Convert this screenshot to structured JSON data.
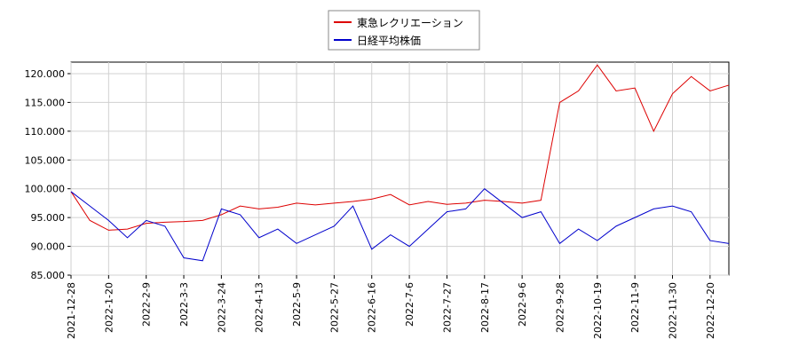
{
  "chart_data": {
    "type": "line",
    "categories": [
      "2021-12-28",
      null,
      "2022-1-20",
      null,
      "2022-2-9",
      null,
      "2022-3-3",
      null,
      "2022-3-24",
      null,
      "2022-4-13",
      null,
      "2022-5-9",
      null,
      "2022-5-27",
      null,
      "2022-6-16",
      null,
      "2022-7-6",
      null,
      "2022-7-27",
      null,
      "2022-8-17",
      null,
      "2022-9-6",
      null,
      "2022-9-28",
      null,
      "2022-10-19",
      null,
      "2022-11-9",
      null,
      "2022-11-30",
      null,
      "2022-12-20",
      null
    ],
    "series": [
      {
        "name": "東急レクリエーション",
        "color": "#dd0000",
        "values": [
          99500,
          94500,
          92800,
          93000,
          94000,
          94200,
          94300,
          94500,
          95500,
          97000,
          96500,
          96800,
          97500,
          97200,
          97500,
          97800,
          98200,
          99000,
          97200,
          97800,
          97300,
          97500,
          98000,
          97800,
          97500,
          98000,
          115000,
          117000,
          121500,
          117000,
          117500,
          110000,
          116500,
          119500,
          117000,
          118000
        ]
      },
      {
        "name": "日経平均株価",
        "color": "#0000cc",
        "values": [
          99500,
          97000,
          94500,
          91500,
          94500,
          93500,
          88000,
          87500,
          96500,
          95500,
          91500,
          93000,
          90500,
          92000,
          93500,
          97000,
          89500,
          92000,
          90000,
          93000,
          96000,
          96500,
          100000,
          97500,
          95000,
          96000,
          90500,
          93000,
          91000,
          93500,
          95000,
          96500,
          97000,
          96000,
          91000,
          90500
        ]
      }
    ],
    "ylim": [
      85000,
      122000
    ],
    "yticks": [
      {
        "value": 85000,
        "label": "85.000"
      },
      {
        "value": 90000,
        "label": "90.000"
      },
      {
        "value": 95000,
        "label": "95.000"
      },
      {
        "value": 100000,
        "label": "100.000"
      },
      {
        "value": 105000,
        "label": "105.000"
      },
      {
        "value": 110000,
        "label": "110.000"
      },
      {
        "value": 115000,
        "label": "115.000"
      },
      {
        "value": 120000,
        "label": "120.000"
      }
    ],
    "grid": true,
    "legend": "top"
  }
}
